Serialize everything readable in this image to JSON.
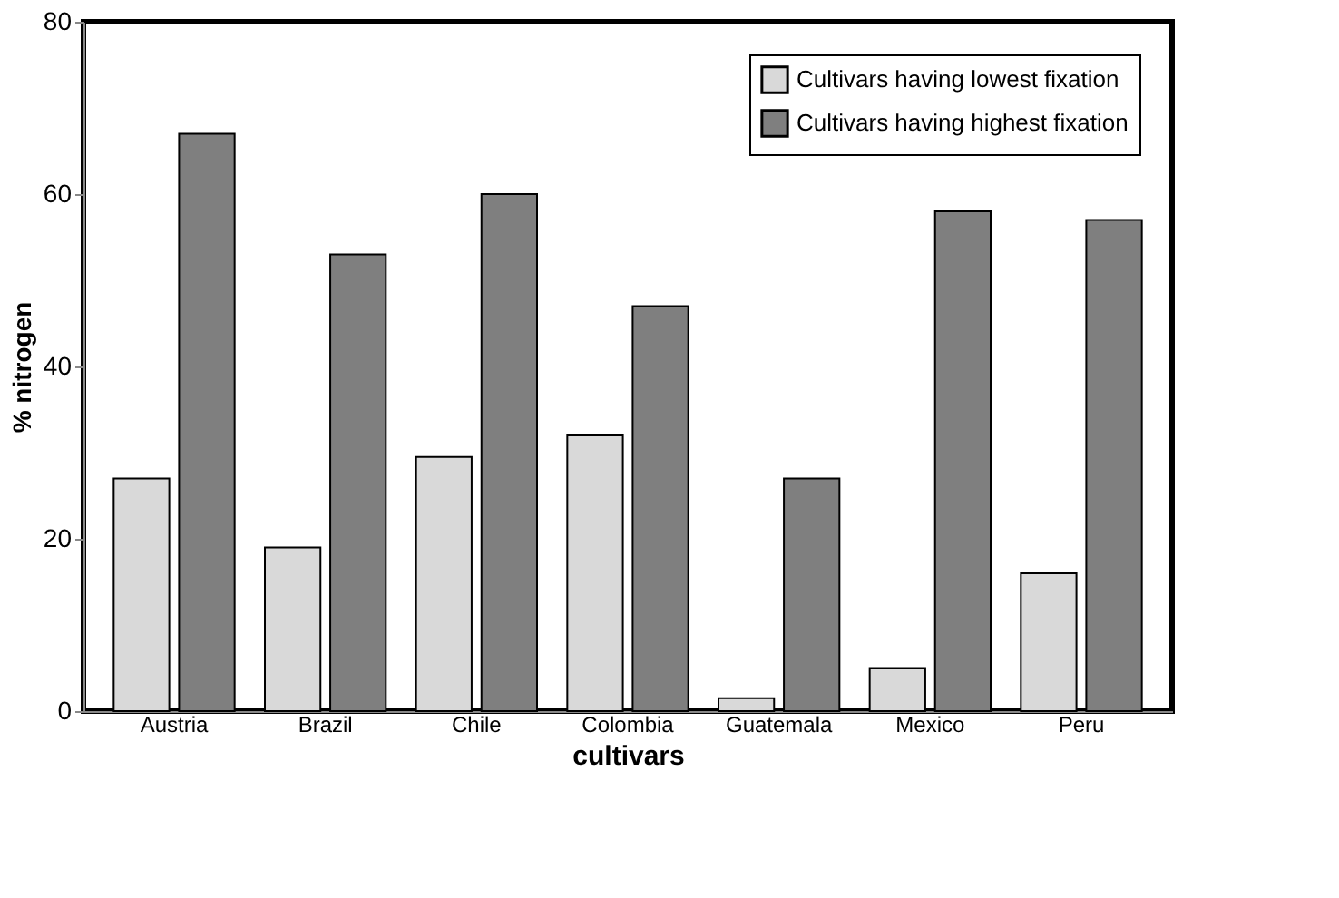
{
  "chart_data": {
    "type": "bar",
    "xlabel": "cultivars",
    "ylabel": "% nitrogen",
    "categories": [
      "Austria",
      "Brazil",
      "Chile",
      "Colombia",
      "Guatemala",
      "Mexico",
      "Peru"
    ],
    "series": [
      {
        "name": "Cultivars having lowest fixation",
        "color": "#d9d9d9",
        "values": [
          27,
          19,
          29.5,
          32,
          1.5,
          5,
          16
        ]
      },
      {
        "name": "Cultivars having highest fixation",
        "color": "#7f7f7f",
        "values": [
          67,
          53,
          60,
          47,
          27,
          58,
          57
        ]
      }
    ],
    "ylim": [
      0,
      80
    ],
    "yticks": [
      0,
      20,
      40,
      60,
      80
    ],
    "legend": "top right",
    "grid": false
  }
}
